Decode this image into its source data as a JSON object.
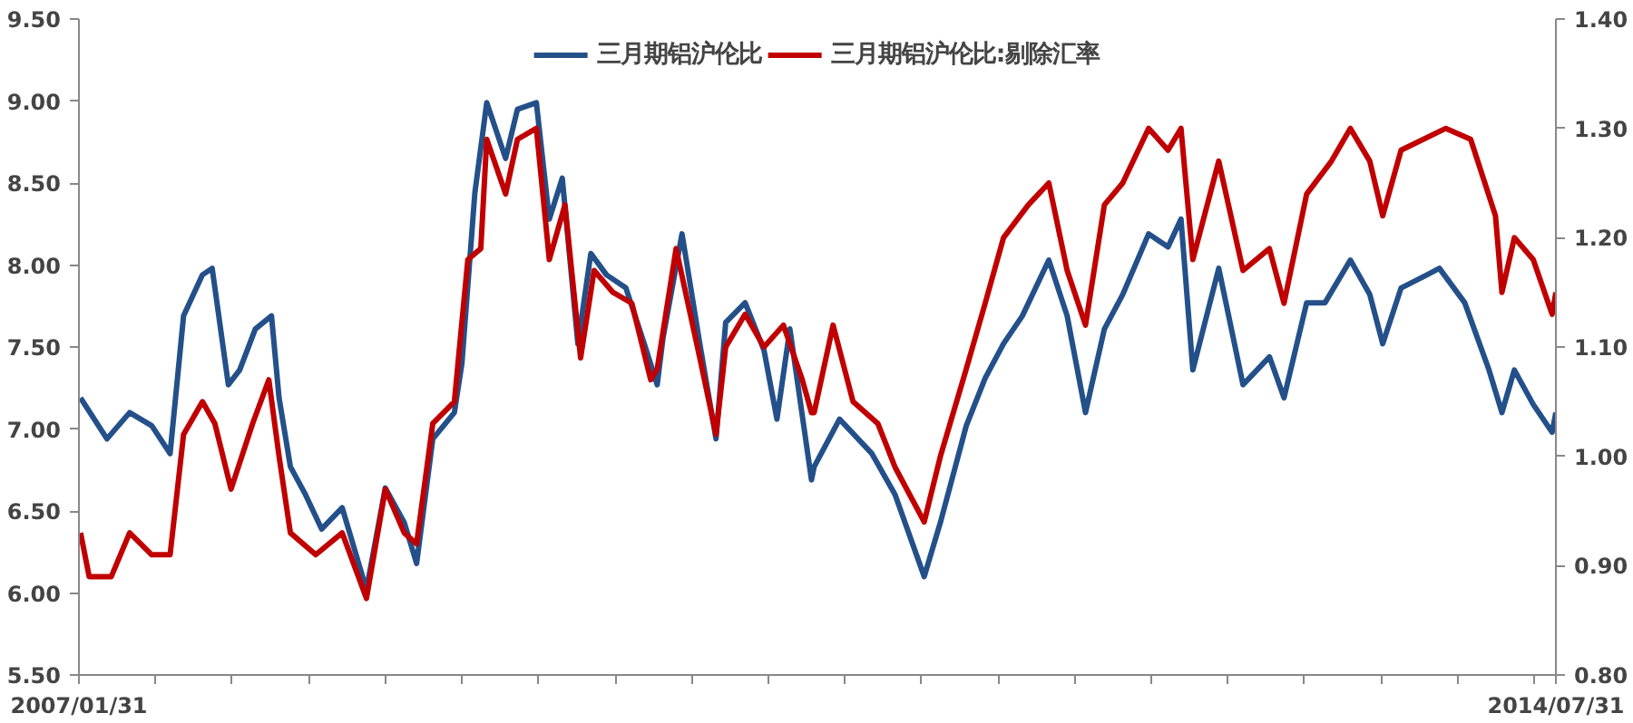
{
  "chart_data": {
    "type": "line",
    "xlim": [
      "2007-01-31",
      "2014-07-31"
    ],
    "xticks": [
      {
        "value": "2007-01-31",
        "label": "2007/01/31"
      },
      {
        "value": "2007-06-22",
        "label": null
      },
      {
        "value": "2007-11-11",
        "label": null
      },
      {
        "value": "2008-04-01",
        "label": null
      },
      {
        "value": "2008-08-21",
        "label": null
      },
      {
        "value": "2009-01-10",
        "label": null
      },
      {
        "value": "2009-06-01",
        "label": null
      },
      {
        "value": "2009-10-21",
        "label": null
      },
      {
        "value": "2010-03-12",
        "label": null
      },
      {
        "value": "2010-08-01",
        "label": null
      },
      {
        "value": "2010-12-21",
        "label": null
      },
      {
        "value": "2011-05-12",
        "label": null
      },
      {
        "value": "2011-10-01",
        "label": null
      },
      {
        "value": "2012-02-20",
        "label": null
      },
      {
        "value": "2012-07-11",
        "label": null
      },
      {
        "value": "2012-11-30",
        "label": null
      },
      {
        "value": "2013-04-21",
        "label": null
      },
      {
        "value": "2013-09-10",
        "label": null
      },
      {
        "value": "2014-01-30",
        "label": null
      },
      {
        "value": "2014-06-21",
        "label": null
      },
      {
        "value": "2014-07-31",
        "label": "2014/07/31"
      }
    ],
    "ylim": [
      5.5,
      9.5
    ],
    "yticks": [
      {
        "value": 5.5,
        "label": "5.50"
      },
      {
        "value": 6,
        "label": "6.00"
      },
      {
        "value": 6.5,
        "label": "6.50"
      },
      {
        "value": 7,
        "label": "7.00"
      },
      {
        "value": 7.5,
        "label": "7.50"
      },
      {
        "value": 8,
        "label": "8.00"
      },
      {
        "value": 8.5,
        "label": "8.50"
      },
      {
        "value": 9,
        "label": "9.00"
      },
      {
        "value": 9.5,
        "label": "9.50"
      }
    ],
    "y2lim": [
      0.8,
      1.4
    ],
    "y2ticks": [
      {
        "value": 0.8,
        "label": "0.80"
      },
      {
        "value": 0.9,
        "label": "0.90"
      },
      {
        "value": 1.0,
        "label": "1.00"
      },
      {
        "value": 1.1,
        "label": "1.10"
      },
      {
        "value": 1.2,
        "label": "1.20"
      },
      {
        "value": 1.3,
        "label": "1.30"
      },
      {
        "value": 1.4,
        "label": "1.40"
      }
    ],
    "grid": false,
    "legend": "top",
    "series": [
      {
        "name": "三月期铝沪伦比",
        "color": "#24508a",
        "x": [
          "2007-02-03",
          "2007-03-24",
          "2007-05-05",
          "2007-06-15",
          "2007-07-19",
          "2007-08-13",
          "2007-09-17",
          "2007-10-05",
          "2007-11-04",
          "2007-11-25",
          "2007-12-24",
          "2008-01-23",
          "2008-02-06",
          "2008-02-27",
          "2008-03-26",
          "2008-04-25",
          "2008-06-02",
          "2008-07-17",
          "2008-08-21",
          "2008-09-25",
          "2008-10-18",
          "2008-11-17",
          "2008-12-27",
          "2009-01-10",
          "2009-02-03",
          "2009-02-25",
          "2009-04-01",
          "2009-04-23",
          "2009-05-28",
          "2009-06-21",
          "2009-07-15",
          "2009-08-13",
          "2009-09-06",
          "2009-10-05",
          "2009-11-10",
          "2009-12-14",
          "2010-01-07",
          "2010-01-18",
          "2010-02-22",
          "2010-03-27",
          "2010-04-26",
          "2010-05-14",
          "2010-06-19",
          "2010-07-24",
          "2010-08-17",
          "2010-09-10",
          "2010-10-20",
          "2010-10-25",
          "2010-12-11",
          "2011-02-09",
          "2011-03-24",
          "2011-05-17",
          "2011-06-16",
          "2011-08-03",
          "2011-09-07",
          "2011-10-11",
          "2011-11-15",
          "2012-01-03",
          "2012-02-06",
          "2012-03-11",
          "2012-04-15",
          "2012-05-19",
          "2012-07-06",
          "2012-08-11",
          "2012-09-04",
          "2012-09-26",
          "2012-11-13",
          "2012-12-28",
          "2013-02-15",
          "2013-03-14",
          "2013-04-25",
          "2013-05-29",
          "2013-07-15",
          "2013-08-20",
          "2013-09-13",
          "2013-10-17",
          "2013-12-04",
          "2013-12-27",
          "2014-02-12",
          "2014-03-29",
          "2014-04-22",
          "2014-05-15",
          "2014-06-19",
          "2014-07-24",
          "2014-07-31"
        ],
        "values": [
          7.19,
          6.94,
          7.1,
          7.02,
          6.85,
          7.69,
          7.94,
          7.98,
          7.27,
          7.36,
          7.61,
          7.69,
          7.19,
          6.77,
          6.6,
          6.39,
          6.52,
          6.02,
          6.64,
          6.43,
          6.18,
          6.94,
          7.1,
          7.4,
          8.44,
          8.99,
          8.65,
          8.95,
          8.99,
          8.28,
          8.53,
          7.52,
          8.07,
          7.94,
          7.86,
          7.52,
          7.27,
          7.56,
          8.19,
          7.52,
          6.94,
          7.65,
          7.77,
          7.48,
          7.06,
          7.61,
          6.69,
          6.77,
          7.06,
          6.85,
          6.6,
          6.1,
          6.43,
          7.02,
          7.31,
          7.52,
          7.69,
          8.03,
          7.69,
          7.1,
          7.61,
          7.82,
          8.19,
          8.11,
          8.28,
          7.36,
          7.98,
          7.27,
          7.44,
          7.19,
          7.77,
          7.77,
          8.03,
          7.82,
          7.52,
          7.86,
          7.94,
          7.98,
          7.77,
          7.36,
          7.1,
          7.36,
          7.15,
          6.98,
          7.1
        ]
      },
      {
        "name": "三月期铝沪伦比:剔除汇率",
        "color": "#c00000",
        "axis": "y2",
        "x": [
          "2007-02-03",
          "2007-02-19",
          "2007-04-01",
          "2007-05-05",
          "2007-06-15",
          "2007-07-19",
          "2007-08-13",
          "2007-09-17",
          "2007-10-10",
          "2007-11-09",
          "2007-12-19",
          "2008-01-18",
          "2008-02-06",
          "2008-02-27",
          "2008-04-14",
          "2008-06-02",
          "2008-07-17",
          "2008-08-21",
          "2008-09-25",
          "2008-10-18",
          "2008-11-17",
          "2008-12-27",
          "2009-01-21",
          "2009-02-14",
          "2009-02-25",
          "2009-04-01",
          "2009-04-23",
          "2009-05-28",
          "2009-06-21",
          "2009-07-20",
          "2009-08-18",
          "2009-09-12",
          "2009-10-17",
          "2009-11-21",
          "2009-12-26",
          "2010-01-07",
          "2010-02-11",
          "2010-03-27",
          "2010-04-26",
          "2010-05-14",
          "2010-06-19",
          "2010-07-24",
          "2010-08-29",
          "2010-10-03",
          "2010-10-20",
          "2010-10-25",
          "2010-11-29",
          "2011-01-05",
          "2011-02-20",
          "2011-03-24",
          "2011-05-17",
          "2011-06-16",
          "2011-08-03",
          "2011-09-07",
          "2011-10-11",
          "2011-11-26",
          "2012-01-03",
          "2012-02-06",
          "2012-03-11",
          "2012-04-15",
          "2012-05-19",
          "2012-07-06",
          "2012-08-11",
          "2012-09-04",
          "2012-09-26",
          "2012-11-13",
          "2012-12-28",
          "2013-02-15",
          "2013-03-14",
          "2013-04-25",
          "2013-06-10",
          "2013-07-15",
          "2013-08-20",
          "2013-09-13",
          "2013-10-17",
          "2014-01-08",
          "2014-02-23",
          "2014-04-10",
          "2014-04-22",
          "2014-05-15",
          "2014-06-19",
          "2014-07-24",
          "2014-07-31"
        ],
        "values": [
          0.93,
          0.89,
          0.89,
          0.93,
          0.91,
          0.91,
          1.02,
          1.05,
          1.03,
          0.97,
          1.03,
          1.07,
          1.0,
          0.93,
          0.91,
          0.93,
          0.87,
          0.97,
          0.93,
          0.92,
          1.03,
          1.05,
          1.18,
          1.19,
          1.29,
          1.24,
          1.29,
          1.3,
          1.18,
          1.23,
          1.09,
          1.17,
          1.15,
          1.14,
          1.07,
          1.08,
          1.19,
          1.09,
          1.02,
          1.1,
          1.13,
          1.1,
          1.12,
          1.07,
          1.04,
          1.04,
          1.12,
          1.05,
          1.03,
          0.99,
          0.94,
          1.0,
          1.08,
          1.14,
          1.2,
          1.23,
          1.25,
          1.17,
          1.12,
          1.23,
          1.25,
          1.3,
          1.28,
          1.3,
          1.18,
          1.27,
          1.17,
          1.19,
          1.14,
          1.24,
          1.27,
          1.3,
          1.27,
          1.22,
          1.28,
          1.3,
          1.29,
          1.22,
          1.15,
          1.2,
          1.18,
          1.13,
          1.15
        ]
      }
    ]
  }
}
